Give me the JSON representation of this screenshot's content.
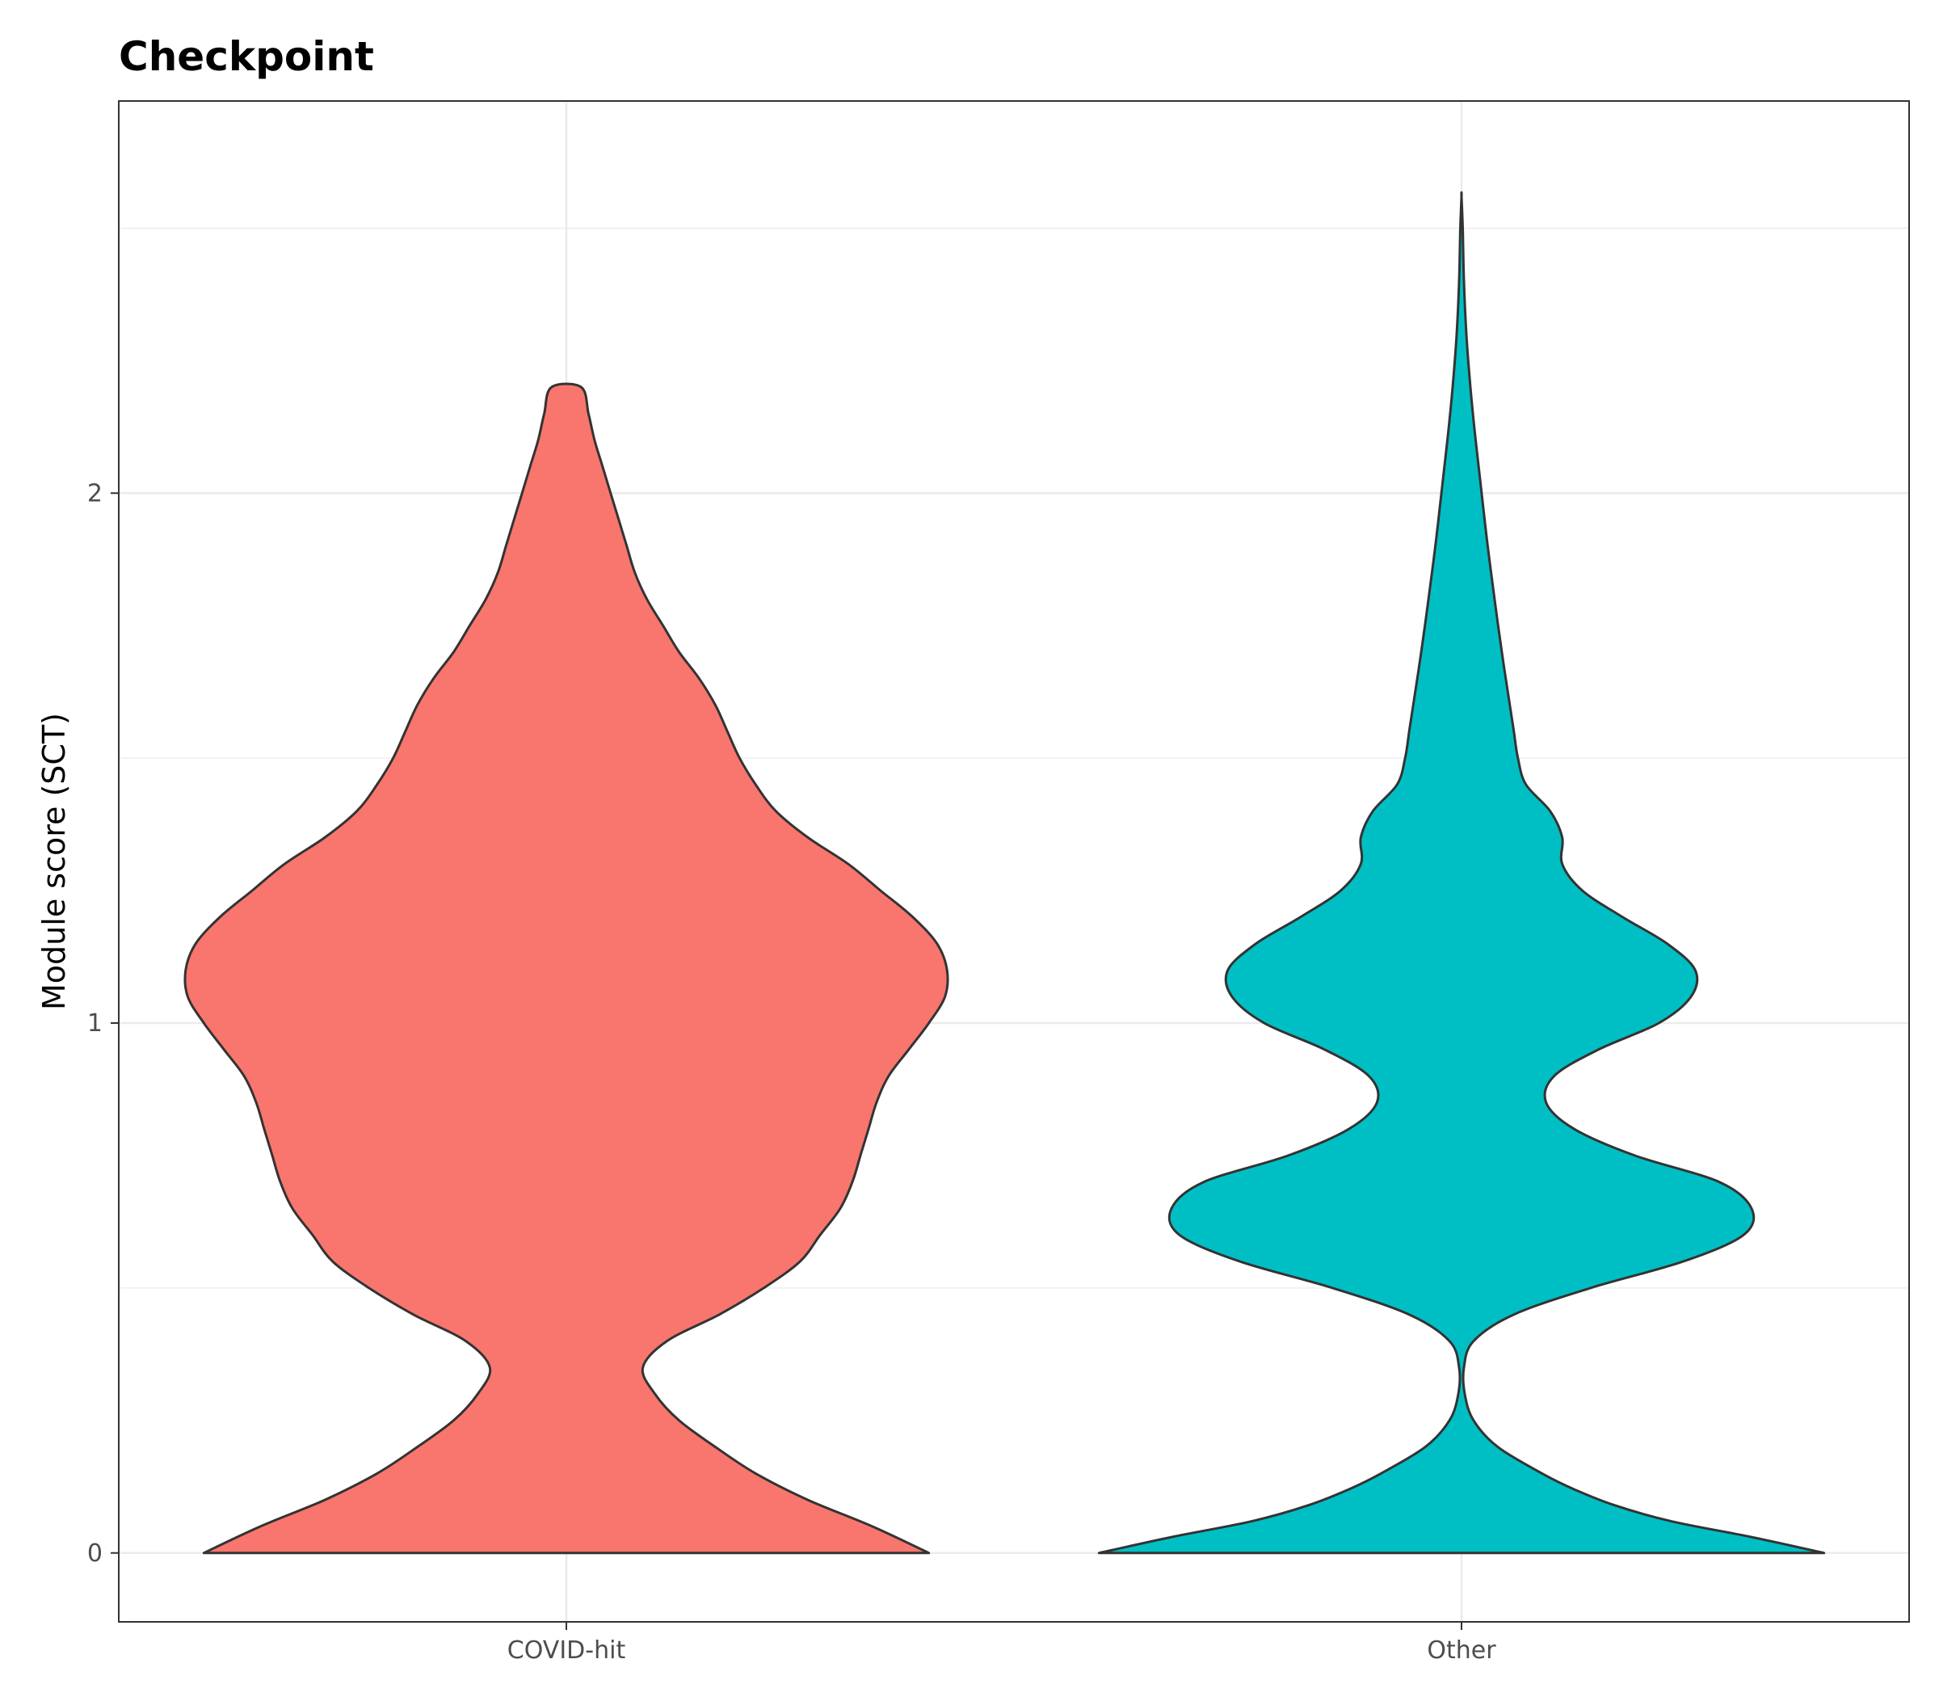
{
  "chart_data": {
    "type": "violin",
    "title": "Checkpoint",
    "xlabel": "",
    "ylabel": "Module score (SCT)",
    "categories": [
      "COVID-hit",
      "Other"
    ],
    "colors": {
      "COVID-hit": "#F8766D",
      "Other": "#00BFC4",
      "outline": "#333333",
      "grid": "#ebebeb",
      "panel_border": "#333333"
    },
    "y_ticks": [
      0,
      1,
      2
    ],
    "y_tick_labels": [
      "0",
      "1",
      "2"
    ],
    "ylim": [
      -0.13,
      2.74
    ],
    "grid": true,
    "legend": "none",
    "series": [
      {
        "category": "COVID-hit",
        "y_range": [
          0,
          2.2
        ],
        "profile": [
          [
            0.0,
            0.9
          ],
          [
            0.05,
            0.76
          ],
          [
            0.1,
            0.6
          ],
          [
            0.15,
            0.47
          ],
          [
            0.2,
            0.37
          ],
          [
            0.25,
            0.28
          ],
          [
            0.3,
            0.22
          ],
          [
            0.35,
            0.19
          ],
          [
            0.4,
            0.25
          ],
          [
            0.45,
            0.38
          ],
          [
            0.5,
            0.49
          ],
          [
            0.55,
            0.58
          ],
          [
            0.6,
            0.63
          ],
          [
            0.65,
            0.68
          ],
          [
            0.7,
            0.71
          ],
          [
            0.75,
            0.73
          ],
          [
            0.8,
            0.75
          ],
          [
            0.85,
            0.77
          ],
          [
            0.9,
            0.8
          ],
          [
            0.95,
            0.85
          ],
          [
            1.0,
            0.9
          ],
          [
            1.05,
            0.94
          ],
          [
            1.1,
            0.945
          ],
          [
            1.15,
            0.92
          ],
          [
            1.2,
            0.86
          ],
          [
            1.25,
            0.78
          ],
          [
            1.3,
            0.7
          ],
          [
            1.35,
            0.6
          ],
          [
            1.4,
            0.52
          ],
          [
            1.45,
            0.47
          ],
          [
            1.5,
            0.43
          ],
          [
            1.55,
            0.4
          ],
          [
            1.6,
            0.37
          ],
          [
            1.65,
            0.33
          ],
          [
            1.7,
            0.28
          ],
          [
            1.75,
            0.24
          ],
          [
            1.8,
            0.2
          ],
          [
            1.85,
            0.17
          ],
          [
            1.9,
            0.15
          ],
          [
            1.95,
            0.13
          ],
          [
            2.0,
            0.11
          ],
          [
            2.05,
            0.09
          ],
          [
            2.1,
            0.07
          ],
          [
            2.15,
            0.055
          ],
          [
            2.2,
            0.037
          ]
        ]
      },
      {
        "category": "Other",
        "y_range": [
          0,
          2.56
        ],
        "profile": [
          [
            0.0,
            0.9
          ],
          [
            0.03,
            0.72
          ],
          [
            0.06,
            0.52
          ],
          [
            0.09,
            0.38
          ],
          [
            0.12,
            0.28
          ],
          [
            0.15,
            0.2
          ],
          [
            0.2,
            0.09
          ],
          [
            0.25,
            0.03
          ],
          [
            0.3,
            0.008
          ],
          [
            0.35,
            0.006
          ],
          [
            0.4,
            0.03
          ],
          [
            0.45,
            0.13
          ],
          [
            0.5,
            0.32
          ],
          [
            0.55,
            0.55
          ],
          [
            0.6,
            0.7
          ],
          [
            0.65,
            0.72
          ],
          [
            0.7,
            0.64
          ],
          [
            0.75,
            0.43
          ],
          [
            0.8,
            0.28
          ],
          [
            0.85,
            0.21
          ],
          [
            0.9,
            0.23
          ],
          [
            0.95,
            0.34
          ],
          [
            1.0,
            0.49
          ],
          [
            1.05,
            0.57
          ],
          [
            1.1,
            0.58
          ],
          [
            1.15,
            0.51
          ],
          [
            1.2,
            0.4
          ],
          [
            1.25,
            0.3
          ],
          [
            1.3,
            0.25
          ],
          [
            1.35,
            0.25
          ],
          [
            1.4,
            0.22
          ],
          [
            1.45,
            0.16
          ],
          [
            1.5,
            0.14
          ],
          [
            1.55,
            0.13
          ],
          [
            1.6,
            0.12
          ],
          [
            1.7,
            0.1
          ],
          [
            1.8,
            0.082
          ],
          [
            1.9,
            0.065
          ],
          [
            2.0,
            0.05
          ],
          [
            2.1,
            0.035
          ],
          [
            2.2,
            0.022
          ],
          [
            2.3,
            0.012
          ],
          [
            2.4,
            0.006
          ],
          [
            2.5,
            0.003
          ],
          [
            2.56,
            0.0
          ]
        ]
      }
    ]
  }
}
